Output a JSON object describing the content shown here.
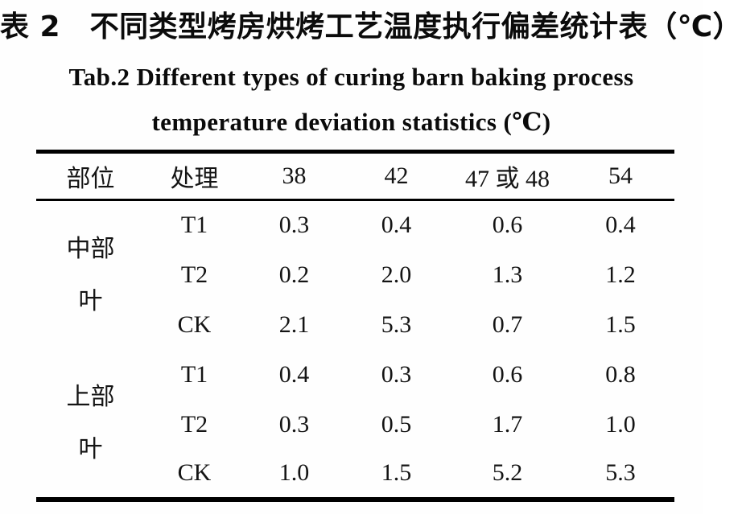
{
  "page": {
    "title_cn": "表 2　不同类型烤房烘烤工艺温度执行偏差统计表（℃）",
    "title_en_line1": "Tab.2 Different types of curing barn baking process",
    "title_en_line2": "temperature deviation statistics (℃)"
  },
  "table": {
    "headers": [
      "部位",
      "处理",
      "38",
      "42",
      "47 或 48",
      "54"
    ],
    "groups": [
      {
        "label_line1": "中部",
        "label_line2": "叶",
        "rows": [
          {
            "treatment": "T1",
            "values": [
              "0.3",
              "0.4",
              "0.6",
              "0.4"
            ]
          },
          {
            "treatment": "T2",
            "values": [
              "0.2",
              "2.0",
              "1.3",
              "1.2"
            ]
          },
          {
            "treatment": "CK",
            "values": [
              "2.1",
              "5.3",
              "0.7",
              "1.5"
            ]
          }
        ]
      },
      {
        "label_line1": "上部",
        "label_line2": "叶",
        "rows": [
          {
            "treatment": "T1",
            "values": [
              "0.4",
              "0.3",
              "0.6",
              "0.8"
            ]
          },
          {
            "treatment": "T2",
            "values": [
              "0.3",
              "0.5",
              "1.7",
              "1.0"
            ]
          },
          {
            "treatment": "CK",
            "values": [
              "1.0",
              "1.5",
              "5.2",
              "5.3"
            ]
          }
        ]
      }
    ]
  },
  "colors": {
    "text": "#0f0f0f",
    "rule": "#000000",
    "background": "#fefefe"
  }
}
